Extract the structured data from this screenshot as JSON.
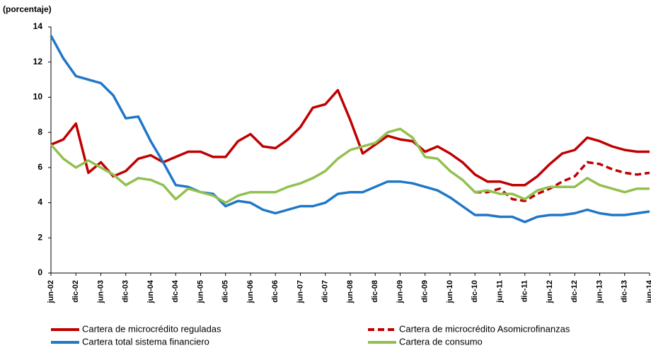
{
  "chart_data": {
    "type": "line",
    "ylabel": "(porcentaje)",
    "categories": [
      "jun-02",
      null,
      "dic-02",
      null,
      "jun-03",
      null,
      "dic-03",
      null,
      "jun-04",
      null,
      "dic-04",
      null,
      "jun-05",
      null,
      "dic-05",
      null,
      "jun-06",
      null,
      "dic-06",
      null,
      "jun-07",
      null,
      "dic-07",
      null,
      "jun-08",
      null,
      "dic-08",
      null,
      "jun-09",
      null,
      "dic-09",
      null,
      "jun-10",
      null,
      "dic-10",
      null,
      "jun-11",
      null,
      "dic-11",
      null,
      "jun-12",
      null,
      "dic-12",
      null,
      "jun-13",
      null,
      "dic-13",
      null,
      "jun-14"
    ],
    "series": [
      {
        "name": "Cartera de microcrédito reguladas",
        "color": "#c00000",
        "style": "solid",
        "values": [
          7.3,
          7.6,
          8.5,
          5.7,
          6.3,
          5.5,
          5.8,
          6.5,
          6.7,
          6.3,
          6.6,
          6.9,
          6.9,
          6.6,
          6.6,
          7.5,
          7.9,
          7.2,
          7.1,
          7.6,
          8.3,
          9.4,
          9.6,
          10.4,
          8.7,
          6.8,
          7.3,
          7.8,
          7.6,
          7.5,
          6.9,
          7.2,
          6.8,
          6.3,
          5.6,
          5.2,
          5.2,
          5.0,
          5.0,
          5.5,
          6.2,
          6.8,
          7.0,
          7.7,
          7.5,
          7.2,
          7.0,
          6.9,
          6.9
        ]
      },
      {
        "name": "Cartera de microcrédito Asomicrofinanzas",
        "color": "#c00000",
        "style": "dashed",
        "values": [
          null,
          null,
          null,
          null,
          null,
          null,
          null,
          null,
          null,
          null,
          null,
          null,
          null,
          null,
          null,
          null,
          null,
          null,
          null,
          null,
          null,
          null,
          null,
          null,
          null,
          null,
          null,
          null,
          null,
          null,
          null,
          null,
          null,
          null,
          4.6,
          4.6,
          4.8,
          4.2,
          4.1,
          4.5,
          4.8,
          5.2,
          5.5,
          6.3,
          6.2,
          5.9,
          5.7,
          5.6,
          5.7
        ]
      },
      {
        "name": "Cartera total sistema financiero",
        "color": "#1f77c8",
        "style": "solid",
        "values": [
          13.5,
          12.2,
          11.2,
          11.0,
          10.8,
          10.1,
          8.8,
          8.9,
          7.5,
          6.3,
          5.0,
          4.9,
          4.6,
          4.5,
          3.8,
          4.1,
          4.0,
          3.6,
          3.4,
          3.6,
          3.8,
          3.8,
          4.0,
          4.5,
          4.6,
          4.6,
          4.9,
          5.2,
          5.2,
          5.1,
          4.9,
          4.7,
          4.3,
          3.8,
          3.3,
          3.3,
          3.2,
          3.2,
          2.9,
          3.2,
          3.3,
          3.3,
          3.4,
          3.6,
          3.4,
          3.3,
          3.3,
          3.4,
          3.5
        ]
      },
      {
        "name": "Cartera de consumo",
        "color": "#92c050",
        "style": "solid",
        "values": [
          7.3,
          6.5,
          6.0,
          6.4,
          6.0,
          5.6,
          5.0,
          5.4,
          5.3,
          5.0,
          4.2,
          4.8,
          4.6,
          4.4,
          4.0,
          4.4,
          4.6,
          4.6,
          4.6,
          4.9,
          5.1,
          5.4,
          5.8,
          6.5,
          7.0,
          7.2,
          7.4,
          8.0,
          8.2,
          7.7,
          6.6,
          6.5,
          5.8,
          5.3,
          4.6,
          4.7,
          4.5,
          4.5,
          4.2,
          4.7,
          4.9,
          4.9,
          4.9,
          5.4,
          5.0,
          4.8,
          4.6,
          4.8,
          4.8
        ]
      }
    ],
    "ylim": [
      0,
      14
    ],
    "yticks": [
      0,
      2,
      4,
      6,
      8,
      10,
      12,
      14
    ],
    "grid": false
  }
}
